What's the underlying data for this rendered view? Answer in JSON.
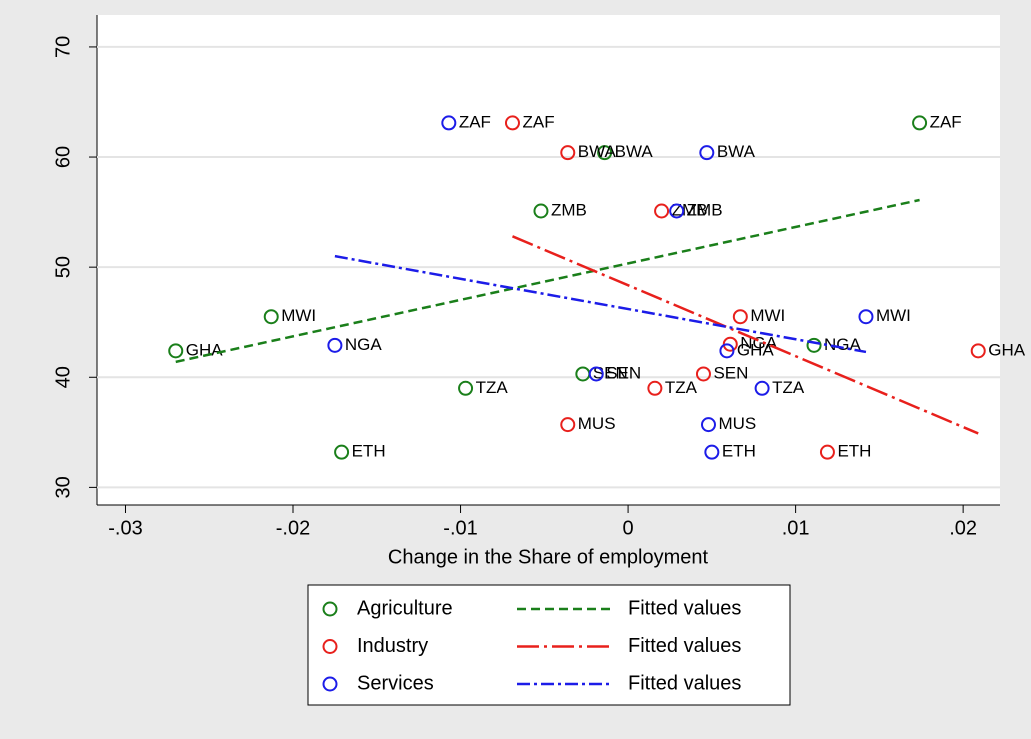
{
  "chart_data": {
    "type": "scatter",
    "x_label": "Change in the Share of employment",
    "xlim": [
      -0.0317,
      0.0222
    ],
    "ylim": [
      28.4,
      72.9
    ],
    "xticks": [
      {
        "value": -0.03,
        "label": "-.03"
      },
      {
        "value": -0.02,
        "label": "-.02"
      },
      {
        "value": -0.01,
        "label": "-.01"
      },
      0,
      {
        "value": 0.01,
        "label": ".01"
      },
      {
        "value": 0.02,
        "label": ".02"
      }
    ],
    "yticks": [
      30,
      40,
      50,
      60,
      70
    ],
    "grid": true,
    "series": [
      {
        "name": "Agriculture",
        "kind": "scatter",
        "color": "#1a7f1a",
        "x": [
          -0.027,
          -0.0213,
          0.0111,
          0.0174,
          -0.0014,
          -0.0052,
          -0.0027,
          -0.0097,
          -0.0171
        ],
        "values": [
          42.4,
          45.5,
          42.9,
          63.1,
          60.4,
          55.1,
          40.3,
          39.0,
          33.2
        ],
        "labels": [
          "GHA",
          "MWI",
          "NGA",
          "ZAF",
          "BWA",
          "ZMB",
          "SEN",
          "TZA",
          "ETH"
        ]
      },
      {
        "name": "Industry",
        "kind": "scatter",
        "color": "#e8201c",
        "x": [
          -0.0069,
          -0.0036,
          0.002,
          0.0067,
          0.0061,
          0.0209,
          0.0045,
          0.0016,
          -0.0036,
          0.0119
        ],
        "values": [
          63.1,
          60.4,
          55.1,
          45.5,
          43.0,
          42.4,
          40.3,
          39.0,
          35.7,
          33.2
        ],
        "labels": [
          "ZAF",
          "BWA",
          "ZMB",
          "MWI",
          "NGA",
          "GHA",
          "SEN",
          "TZA",
          "MUS",
          "ETH"
        ]
      },
      {
        "name": "Services",
        "kind": "scatter",
        "color": "#1c1ce8",
        "x": [
          -0.0107,
          0.0047,
          0.0029,
          0.0142,
          -0.0175,
          0.0059,
          -0.0019,
          0.008,
          0.0048,
          0.005
        ],
        "values": [
          63.1,
          60.4,
          55.1,
          45.5,
          42.9,
          42.4,
          40.3,
          39.0,
          35.7,
          33.2
        ],
        "labels": [
          "ZAF",
          "BWA",
          "ZMB",
          "MWI",
          "NGA",
          "GHA",
          "SEN",
          "TZA",
          "MUS",
          "ETH"
        ]
      },
      {
        "name": "Fitted values",
        "kind": "line",
        "color": "#1a7f1a",
        "dash": "9 5",
        "x": [
          -0.027,
          0.0174
        ],
        "values": [
          41.4,
          56.1
        ]
      },
      {
        "name": "Fitted values",
        "kind": "line",
        "color": "#e8201c",
        "dash": "22 5 3 5",
        "x": [
          -0.0069,
          0.0209
        ],
        "values": [
          52.8,
          34.9
        ]
      },
      {
        "name": "Fitted values",
        "kind": "line",
        "color": "#1c1ce8",
        "dash": "13 4 3 4",
        "x": [
          -0.0175,
          0.0142
        ],
        "values": [
          51.0,
          42.3
        ]
      }
    ]
  }
}
